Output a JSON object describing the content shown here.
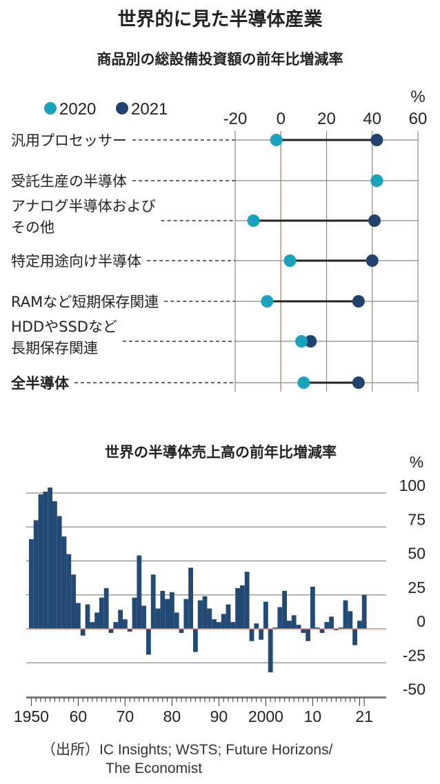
{
  "title": "世界的に見た半導体産業",
  "colors": {
    "c2020": "#1aa3bf",
    "c2021": "#22426e",
    "bar": "#234a75",
    "zero": "#e0806a",
    "grid": "#888888"
  },
  "chart_data": [
    {
      "type": "dumbbell",
      "title": "商品別の総設備投資額の前年比増減率",
      "unit": "%",
      "xlim": [
        -20,
        60
      ],
      "x_ticks": [
        -20,
        0,
        20,
        40,
        60
      ],
      "x_tick_labels": [
        "-20",
        "0",
        "20",
        "40",
        "60"
      ],
      "legend": [
        "2020",
        "2021"
      ],
      "categories": [
        [
          "汎用プロセッサー"
        ],
        [
          "受託生産の半導体"
        ],
        [
          "アナログ半導体および",
          "その他"
        ],
        [
          "特定用途向け半導体"
        ],
        [
          "RAMなど短期保存関連"
        ],
        [
          "HDDやSSDなど",
          "長期保存関連"
        ],
        [
          "全半導体"
        ]
      ],
      "series": [
        {
          "name": "2020",
          "values": [
            -2,
            42,
            -12,
            4,
            -6,
            9,
            10
          ]
        },
        {
          "name": "2021",
          "values": [
            42,
            42,
            41,
            40,
            34,
            13,
            34
          ]
        }
      ]
    },
    {
      "type": "bar",
      "title": "世界の半導体売上高の前年比増減率",
      "unit": "%",
      "ylim": [
        -50,
        100
      ],
      "y_ticks": [
        100,
        75,
        50,
        25,
        0,
        -25,
        -50
      ],
      "y_tick_labels": [
        "100",
        "75",
        "50",
        "25",
        "0",
        "-25",
        "-50"
      ],
      "x_tick_labels": [
        "1950",
        "60",
        "70",
        "80",
        "90",
        "2000",
        "10",
        "21"
      ],
      "x_tick_years": [
        1950,
        1960,
        1970,
        1980,
        1990,
        2000,
        2010,
        2021
      ],
      "x": [
        1950,
        1951,
        1952,
        1953,
        1954,
        1955,
        1956,
        1957,
        1958,
        1959,
        1960,
        1961,
        1962,
        1963,
        1964,
        1965,
        1966,
        1967,
        1968,
        1969,
        1970,
        1971,
        1972,
        1973,
        1974,
        1975,
        1976,
        1977,
        1978,
        1979,
        1980,
        1981,
        1982,
        1983,
        1984,
        1985,
        1986,
        1987,
        1988,
        1989,
        1990,
        1991,
        1992,
        1993,
        1994,
        1995,
        1996,
        1997,
        1998,
        1999,
        2000,
        2001,
        2002,
        2003,
        2004,
        2005,
        2006,
        2007,
        2008,
        2009,
        2010,
        2011,
        2012,
        2013,
        2014,
        2015,
        2016,
        2017,
        2018,
        2019,
        2020,
        2021
      ],
      "values": [
        66,
        80,
        99,
        101,
        104,
        94,
        83,
        68,
        55,
        40,
        19,
        -5,
        18,
        5,
        12,
        23,
        30,
        -3,
        5,
        14,
        7,
        -2,
        23,
        54,
        17,
        -19,
        40,
        15,
        28,
        22,
        27,
        12,
        -3,
        22,
        45,
        -17,
        21,
        24,
        15,
        7,
        5,
        11,
        18,
        5,
        30,
        32,
        42,
        -9,
        4,
        -8,
        20,
        -32,
        1,
        16,
        28,
        6,
        10,
        3,
        -3,
        -9,
        31,
        1,
        -3,
        5,
        9,
        -1,
        1,
        21,
        13,
        -12,
        6,
        25
      ]
    }
  ],
  "source_label": "（出所）IC Insights; WSTS; Future Horizons/",
  "source_label_2": "The Economist"
}
